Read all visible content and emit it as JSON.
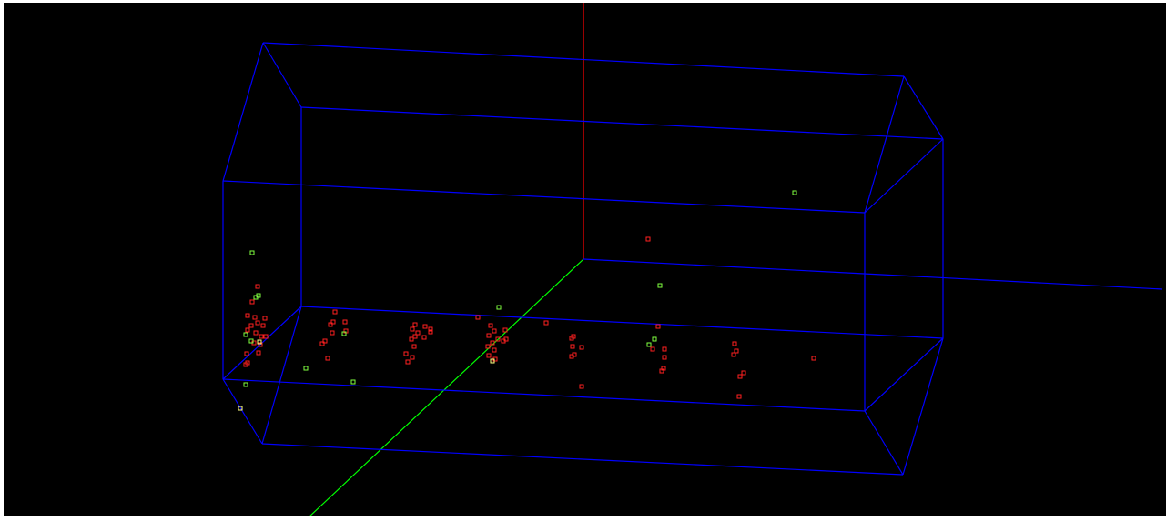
{
  "colors": {
    "background": "#000000",
    "box_edges": "#0000ff",
    "axis_vertical": "#ff0000",
    "axis_depth": "#00ff00",
    "axis_horizontal": "#0000ff",
    "marker_red": "#ff2020",
    "marker_green": "#80ff40",
    "marker_yellow": "#ffff80"
  },
  "scene": {
    "view_type": "3d-scatter",
    "marker_shape": "hollow-square",
    "marker_groups": [
      "red",
      "green",
      "yellow"
    ]
  }
}
